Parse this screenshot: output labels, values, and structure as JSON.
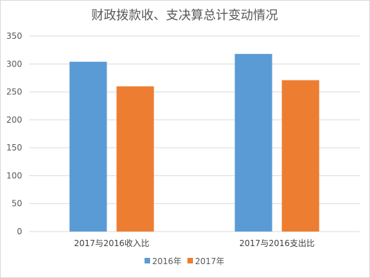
{
  "chart_data": {
    "type": "bar",
    "title": "财政拨款收、支决算总计变动情况",
    "categories": [
      "2017与2016收入比",
      "2017与2016支出比"
    ],
    "series": [
      {
        "name": "2016年",
        "values": [
          304,
          318
        ],
        "color": "#5b9bd5"
      },
      {
        "name": "2017年",
        "values": [
          260,
          271
        ],
        "color": "#ed7d31"
      }
    ],
    "yticks": [
      0,
      50,
      100,
      150,
      200,
      250,
      300,
      350
    ],
    "ylim": [
      0,
      350
    ],
    "grid": true,
    "legend_position": "bottom"
  }
}
